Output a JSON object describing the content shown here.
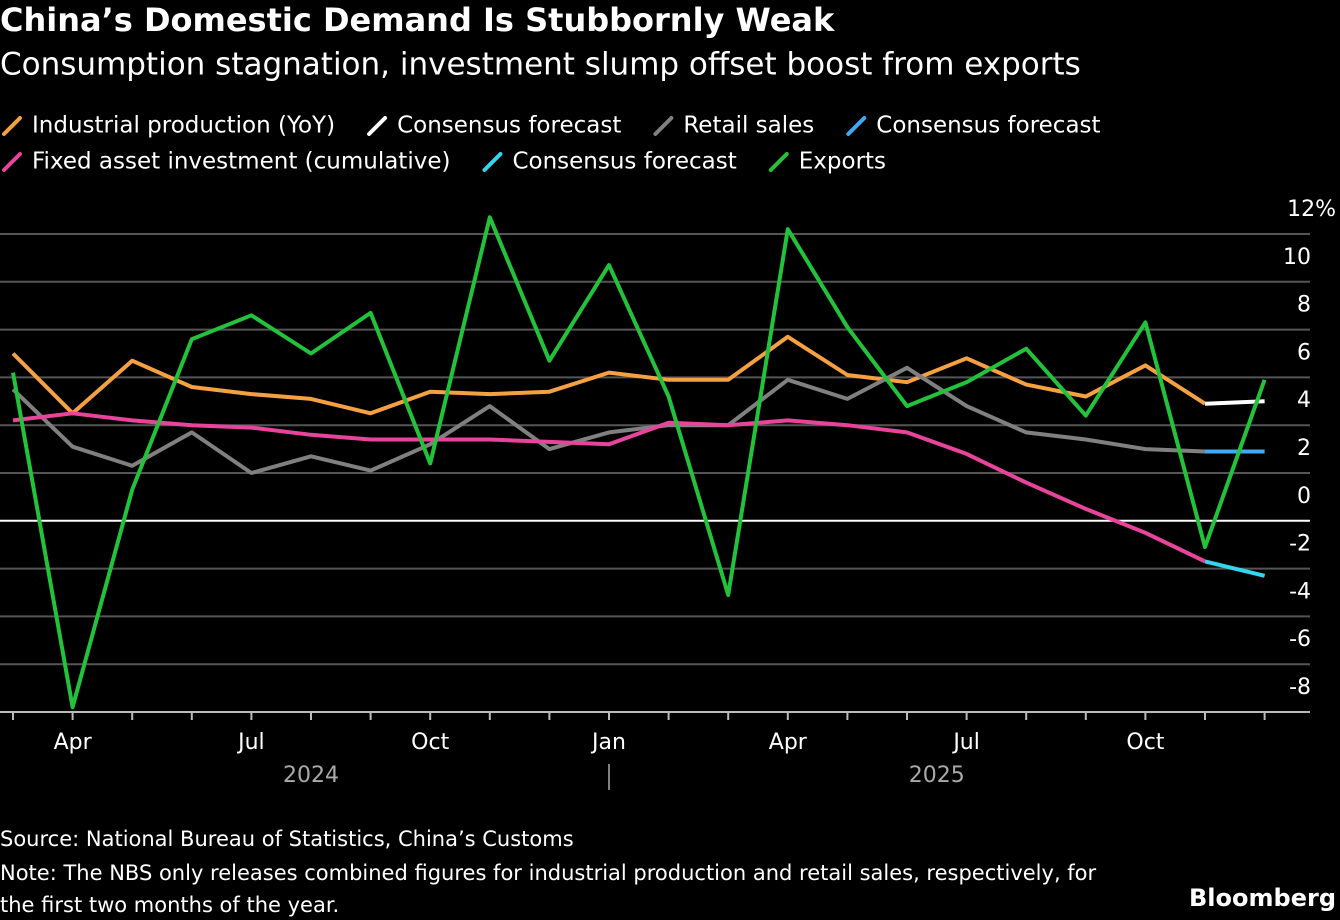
{
  "chart_data": {
    "type": "line",
    "title": "China’s Domestic Demand Is Stubbornly Weak",
    "subtitle": "Consumption stagnation, investment slump offset boost from exports",
    "categories": [
      null,
      "Apr",
      null,
      null,
      "Jul",
      null,
      null,
      "Oct",
      null,
      null,
      "Jan",
      null,
      null,
      "Apr",
      null,
      null,
      "Jul",
      null,
      null,
      "Oct",
      null,
      null
    ],
    "year_labels": [
      "2024",
      "2025"
    ],
    "series": [
      {
        "name": "Industrial production (YoY)",
        "color": "#f5a142",
        "values": [
          7.0,
          4.5,
          6.7,
          5.6,
          5.3,
          5.1,
          4.5,
          5.4,
          5.3,
          5.4,
          6.2,
          5.9,
          5.9,
          7.7,
          6.1,
          5.8,
          6.8,
          5.7,
          5.2,
          6.5,
          4.9,
          null
        ]
      },
      {
        "name": "Consensus forecast",
        "color": "#ffffff",
        "values": [
          null,
          null,
          null,
          null,
          null,
          null,
          null,
          null,
          null,
          null,
          null,
          null,
          null,
          null,
          null,
          null,
          null,
          null,
          null,
          null,
          4.9,
          5.0
        ]
      },
      {
        "name": "Retail sales",
        "color": "#808080",
        "values": [
          5.5,
          3.1,
          2.3,
          3.7,
          2.0,
          2.7,
          2.1,
          3.2,
          4.8,
          3.0,
          3.7,
          4.0,
          4.0,
          5.9,
          5.1,
          6.4,
          4.8,
          3.7,
          3.4,
          3.0,
          2.9,
          null
        ]
      },
      {
        "name": "Consensus forecast",
        "color": "#3fa9f5",
        "values": [
          null,
          null,
          null,
          null,
          null,
          null,
          null,
          null,
          null,
          null,
          null,
          null,
          null,
          null,
          null,
          null,
          null,
          null,
          null,
          null,
          2.9,
          2.9
        ]
      },
      {
        "name": "Fixed asset investment (cumulative)",
        "color": "#e8449b",
        "values": [
          4.2,
          4.5,
          4.2,
          4.0,
          3.9,
          3.6,
          3.4,
          3.4,
          3.4,
          3.3,
          3.2,
          4.1,
          4.0,
          4.2,
          4.0,
          3.7,
          2.8,
          1.6,
          0.5,
          -0.5,
          -1.7,
          null
        ]
      },
      {
        "name": "Consensus forecast",
        "color": "#33d6f0",
        "values": [
          null,
          null,
          null,
          null,
          null,
          null,
          null,
          null,
          null,
          null,
          null,
          null,
          null,
          null,
          null,
          null,
          null,
          null,
          null,
          null,
          -1.7,
          -2.3
        ]
      },
      {
        "name": "Exports",
        "color": "#22c23a",
        "values": [
          6.2,
          -7.8,
          1.3,
          7.6,
          8.6,
          7.0,
          8.7,
          2.4,
          12.7,
          6.7,
          10.7,
          5.2,
          -3.1,
          12.2,
          8.1,
          4.8,
          5.8,
          7.2,
          4.4,
          8.3,
          -1.1,
          5.9
        ]
      }
    ],
    "ylim": [
      -8,
      12
    ],
    "yticks": [
      {
        "value": 12,
        "label": "12%"
      },
      10,
      8,
      6,
      4,
      2,
      0,
      -2,
      -4,
      -6,
      -8
    ],
    "grid": true,
    "source": "Source: National Bureau of Statistics, China’s Customs",
    "note": "Note: The NBS only releases combined figures for industrial production and retail sales, respectively, for the first two months of the year.",
    "brand": "Bloomberg"
  }
}
